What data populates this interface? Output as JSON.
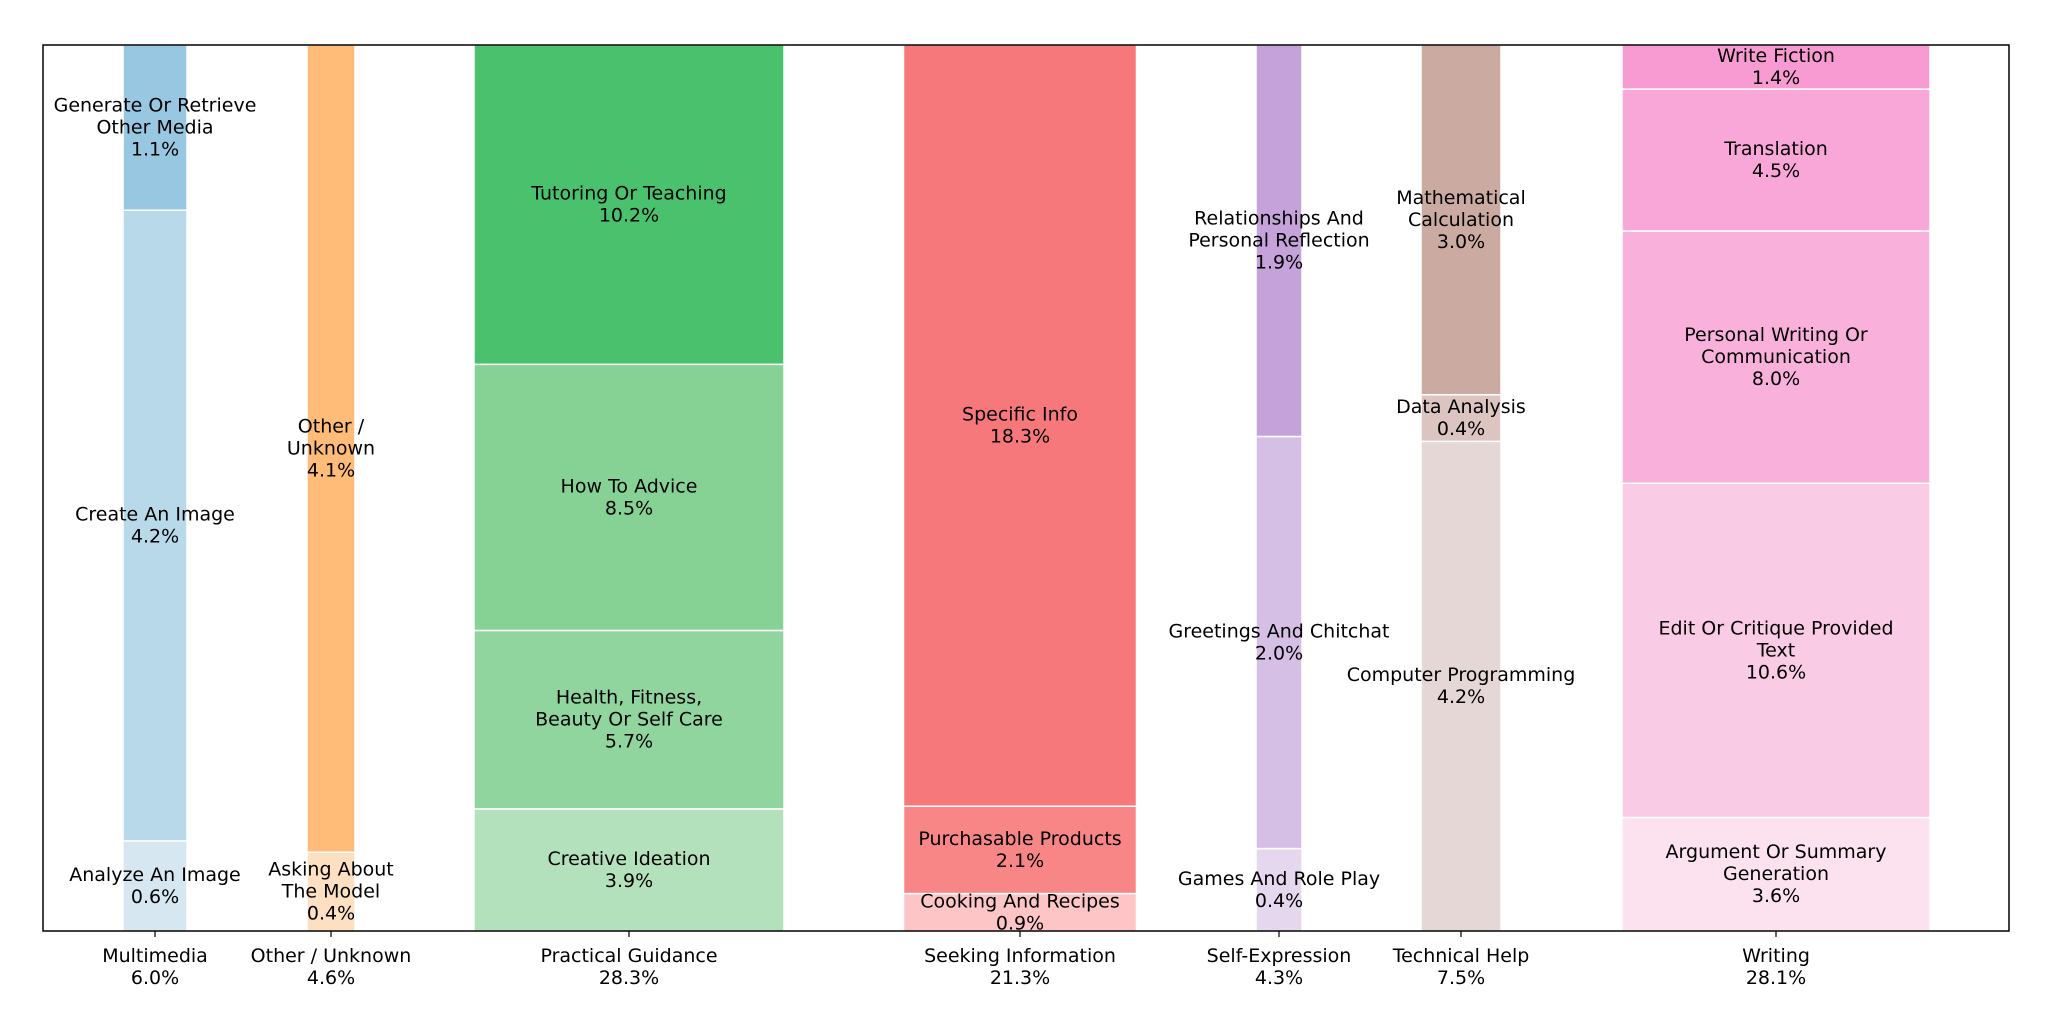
{
  "chart_data": {
    "type": "stacked-bar-mosaic",
    "title": "",
    "xlabel": "",
    "ylabel": "",
    "ylim": [
      0,
      1
    ],
    "categories": [
      {
        "name": "Multimedia",
        "total": "6.0%",
        "total_value": 6.0,
        "subcategories": [
          {
            "name": "Analyze An Image",
            "value": 0.6,
            "label": "0.6%",
            "color": "#d6e7f2"
          },
          {
            "name": "Create An Image",
            "value": 4.2,
            "label": "4.2%",
            "color": "#b8d9ea"
          },
          {
            "name": "Generate Or Retrieve Other Media",
            "value": 1.1,
            "label": "1.1%",
            "color": "#98c7e1"
          }
        ]
      },
      {
        "name": "Other / Unknown",
        "total": "4.6%",
        "total_value": 4.6,
        "subcategories": [
          {
            "name": "Asking About The Model",
            "value": 0.4,
            "label": "0.4%",
            "color": "#fde0c2"
          },
          {
            "name": "Other / Unknown",
            "value": 4.1,
            "label": "4.1%",
            "color": "#ffbb78"
          }
        ]
      },
      {
        "name": "Practical Guidance",
        "total": "28.3%",
        "total_value": 28.3,
        "subcategories": [
          {
            "name": "Creative Ideation",
            "value": 3.9,
            "label": "3.9%",
            "color": "#b3e1bb"
          },
          {
            "name": "Health, Fitness, Beauty Or Self Care",
            "value": 5.7,
            "label": "5.7%",
            "color": "#8fd59d"
          },
          {
            "name": "How To Advice",
            "value": 8.5,
            "label": "8.5%",
            "color": "#86d295"
          },
          {
            "name": "Tutoring Or Teaching",
            "value": 10.2,
            "label": "10.2%",
            "color": "#4ac16d"
          }
        ]
      },
      {
        "name": "Seeking Information",
        "total": "21.3%",
        "total_value": 21.3,
        "subcategories": [
          {
            "name": "Cooking And Recipes",
            "value": 0.9,
            "label": "0.9%",
            "color": "#fdc5c5"
          },
          {
            "name": "Purchasable Products",
            "value": 2.1,
            "label": "2.1%",
            "color": "#f98686"
          },
          {
            "name": "Specific Info",
            "value": 18.3,
            "label": "18.3%",
            "color": "#f7787a"
          }
        ]
      },
      {
        "name": "Self-Expression",
        "total": "4.3%",
        "total_value": 4.3,
        "subcategories": [
          {
            "name": "Games And Role Play",
            "value": 0.4,
            "label": "0.4%",
            "color": "#e5d7ee"
          },
          {
            "name": "Greetings And Chitchat",
            "value": 2.0,
            "label": "2.0%",
            "color": "#d5bfe4"
          },
          {
            "name": "Relationships And Personal Reflection",
            "value": 1.9,
            "label": "1.9%",
            "color": "#c5a2da"
          }
        ]
      },
      {
        "name": "Technical Help",
        "total": "7.5%",
        "total_value": 7.5,
        "subcategories": [
          {
            "name": "Computer Programming",
            "value": 4.2,
            "label": "4.2%",
            "color": "#e4d7d5"
          },
          {
            "name": "Data Analysis",
            "value": 0.4,
            "label": "0.4%",
            "color": "#dcc5c1"
          },
          {
            "name": "Mathematical Calculation",
            "value": 3.0,
            "label": "3.0%",
            "color": "#cbaaa2"
          }
        ]
      },
      {
        "name": "Writing",
        "total": "28.1%",
        "total_value": 28.1,
        "subcategories": [
          {
            "name": "Argument Or Summary Generation",
            "value": 3.6,
            "label": "3.6%",
            "color": "#fce1ee"
          },
          {
            "name": "Edit Or Critique Provided Text",
            "value": 10.6,
            "label": "10.6%",
            "color": "#facbe4"
          },
          {
            "name": "Personal Writing Or Communication",
            "value": 8.0,
            "label": "8.0%",
            "color": "#f9b1dc"
          },
          {
            "name": "Translation",
            "value": 4.5,
            "label": "4.5%",
            "color": "#f9a6d8"
          },
          {
            "name": "Write Fiction",
            "value": 1.4,
            "label": "1.4%",
            "color": "#f99bd3"
          }
        ]
      }
    ],
    "grid": false,
    "legend": "none"
  }
}
